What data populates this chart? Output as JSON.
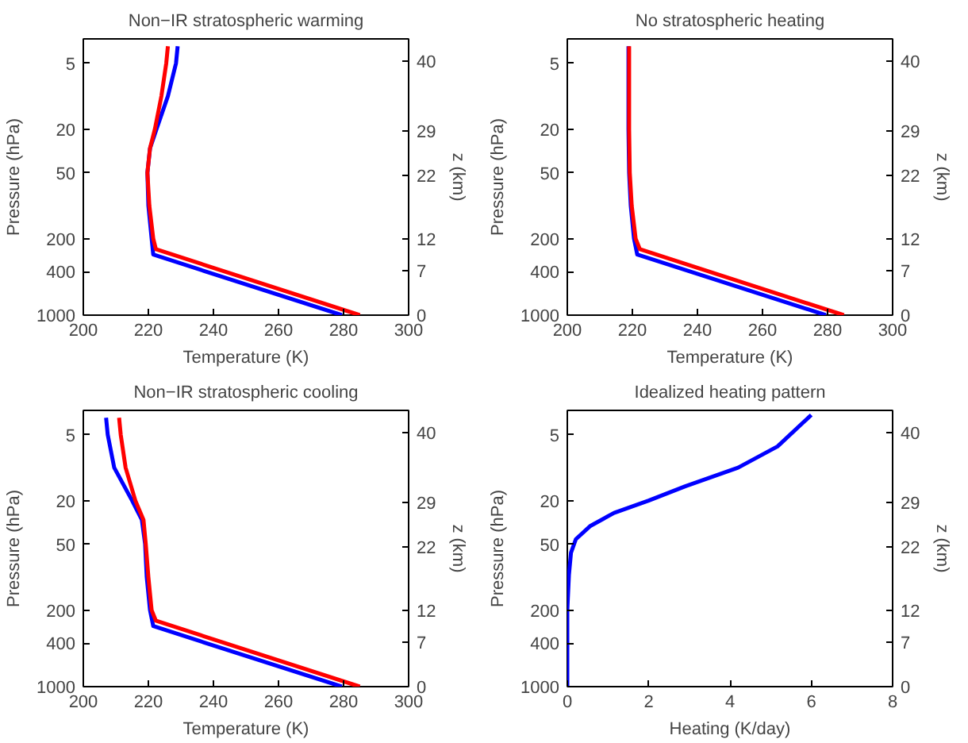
{
  "chart_data": [
    {
      "type": "line",
      "title": "Non−IR stratospheric warming",
      "xlabel": "Temperature (K)",
      "ylabel": "Pressure (hPa)",
      "y2label": "z (km)",
      "log": "y",
      "xlim": [
        200,
        300
      ],
      "xticks": [
        200,
        220,
        240,
        260,
        280,
        300
      ],
      "ylim": [
        1000,
        3
      ],
      "yticks": [
        5,
        20,
        50,
        200,
        400,
        1000
      ],
      "y2lim": [
        0,
        43.5
      ],
      "y2ticks": [
        0,
        7,
        12,
        22,
        29,
        40
      ],
      "series": [
        {
          "color": "#0000ff",
          "x": [
            229,
            228.5,
            226,
            222.5,
            220.5,
            219.7,
            220,
            221,
            221.5,
            279.5
          ],
          "values": [
            3.5,
            5,
            10,
            20,
            30,
            50,
            100,
            200,
            280,
            1000
          ]
        },
        {
          "color": "#ff0000",
          "x": [
            226,
            225.5,
            224,
            222,
            220.5,
            219.7,
            220.3,
            221.5,
            222.3,
            285
          ],
          "values": [
            3.5,
            5,
            10,
            20,
            30,
            50,
            100,
            200,
            250,
            1000
          ]
        }
      ]
    },
    {
      "type": "line",
      "title": "No stratospheric heating",
      "xlabel": "Temperature (K)",
      "ylabel": "Pressure (hPa)",
      "y2label": "z (km)",
      "log": "y",
      "xlim": [
        200,
        300
      ],
      "xticks": [
        200,
        220,
        240,
        260,
        280,
        300
      ],
      "ylim": [
        1000,
        3
      ],
      "yticks": [
        5,
        20,
        50,
        200,
        400,
        1000
      ],
      "y2lim": [
        0,
        43.5
      ],
      "y2ticks": [
        0,
        7,
        12,
        22,
        29,
        40
      ],
      "series": [
        {
          "color": "#0000ff",
          "x": [
            218.8,
            218.8,
            219,
            219.5,
            220.5,
            221.5,
            279.5
          ],
          "values": [
            3.5,
            20,
            50,
            100,
            200,
            280,
            1000
          ]
        },
        {
          "color": "#ff0000",
          "x": [
            219,
            219,
            219.2,
            219.8,
            221,
            222.3,
            285
          ],
          "values": [
            3.5,
            20,
            50,
            100,
            200,
            250,
            1000
          ]
        }
      ]
    },
    {
      "type": "line",
      "title": "Non−IR stratospheric cooling",
      "xlabel": "Temperature (K)",
      "ylabel": "Pressure (hPa)",
      "y2label": "z (km)",
      "log": "y",
      "xlim": [
        200,
        300
      ],
      "xticks": [
        200,
        220,
        240,
        260,
        280,
        300
      ],
      "ylim": [
        1000,
        3
      ],
      "yticks": [
        5,
        20,
        50,
        200,
        400,
        1000
      ],
      "y2lim": [
        0,
        43.5
      ],
      "y2ticks": [
        0,
        7,
        12,
        22,
        29,
        40
      ],
      "series": [
        {
          "color": "#0000ff",
          "x": [
            207,
            207.5,
            209.5,
            215,
            218,
            219,
            219.5,
            220.5,
            221.5,
            279.5
          ],
          "values": [
            3.5,
            5,
            10,
            20,
            30,
            50,
            100,
            200,
            280,
            1000
          ]
        },
        {
          "color": "#ff0000",
          "x": [
            211,
            211.5,
            213,
            216,
            218.5,
            219.2,
            220,
            221,
            222.3,
            285
          ],
          "values": [
            3.5,
            5,
            10,
            20,
            30,
            50,
            100,
            200,
            250,
            1000
          ]
        }
      ]
    },
    {
      "type": "line",
      "title": "Idealized heating pattern",
      "xlabel": "Heating (K/day)",
      "ylabel": "Pressure (hPa)",
      "y2label": "z (km)",
      "log": "y",
      "xlim": [
        0,
        8
      ],
      "xticks": [
        0,
        2,
        4,
        6,
        8
      ],
      "ylim": [
        1000,
        3
      ],
      "yticks": [
        5,
        20,
        50,
        200,
        400,
        1000
      ],
      "y2lim": [
        0,
        43.5
      ],
      "y2ticks": [
        0,
        7,
        12,
        22,
        29,
        40
      ],
      "series": [
        {
          "color": "#0000ff",
          "x": [
            6.0,
            5.17,
            4.2,
            2.9,
            2.0,
            1.15,
            0.57,
            0.21,
            0.09,
            0.04,
            0,
            0
          ],
          "values": [
            3.3,
            6.4,
            10,
            14.8,
            20,
            25.9,
            34,
            45,
            60,
            95,
            200,
            1000
          ]
        }
      ]
    }
  ]
}
